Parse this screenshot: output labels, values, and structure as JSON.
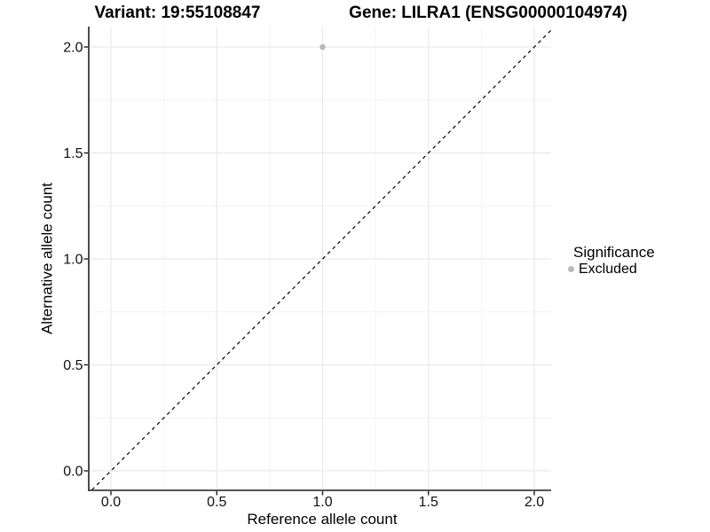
{
  "titles": {
    "left": "Variant: 19:55108847",
    "right": "Gene: LILRA1 (ENSG00000104974)"
  },
  "chart_data": {
    "type": "scatter",
    "title_left": "Variant: 19:55108847",
    "title_right": "Gene: LILRA1 (ENSG00000104974)",
    "xlabel": "Reference allele count",
    "ylabel": "Alternative allele count",
    "xlim": [
      -0.105,
      2.08
    ],
    "ylim": [
      -0.09,
      2.095
    ],
    "xticks": {
      "values": [
        0,
        0.5,
        1,
        1.5,
        2
      ],
      "labels": [
        "0.0",
        "0.5",
        "1.0",
        "1.5",
        "2.0"
      ]
    },
    "yticks": {
      "values": [
        0,
        0.5,
        1,
        1.5,
        2
      ],
      "labels": [
        "0.0",
        "0.5",
        "1.0",
        "1.5",
        "2.0"
      ]
    },
    "minor_xticks": [
      0.25,
      0.75,
      1.25,
      1.75
    ],
    "minor_yticks": [
      0.25,
      0.75,
      1.25,
      1.75
    ],
    "grid": "major and minor gridlines, very light grey, on white panel",
    "series": [
      {
        "name": "Excluded",
        "color": "#b9b9b9",
        "points": [
          {
            "x": 1.0,
            "y": 2.0
          }
        ]
      }
    ],
    "reference_line": {
      "type": "identity",
      "slope": 1,
      "intercept": 0,
      "style": "dashed",
      "color": "#000000",
      "from": [
        -0.09,
        -0.09
      ],
      "to": [
        2.078,
        2.078
      ]
    },
    "legend": {
      "title": "Significance",
      "position": "right",
      "items": [
        {
          "label": "Excluded",
          "color": "#b9b9b9",
          "marker": "circle"
        }
      ]
    }
  },
  "colors": {
    "background": "#ffffff",
    "axis_line": "#1f1f1f",
    "tick_text": "#111111",
    "grid_major": "#e9e9e9",
    "grid_minor": "#f4f4f4",
    "point": "#b9b9b9",
    "dashed_line": "#000000"
  }
}
